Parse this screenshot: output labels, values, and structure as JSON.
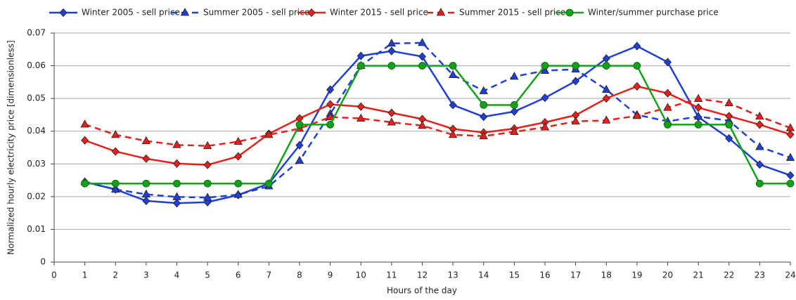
{
  "chart_data": {
    "type": "line",
    "x_label": "Hours of the day",
    "y_label": "Normalized hourly electricity price [dimensionless]",
    "x": [
      1,
      2,
      3,
      4,
      5,
      6,
      7,
      8,
      9,
      10,
      11,
      12,
      13,
      14,
      15,
      16,
      17,
      18,
      19,
      20,
      21,
      22,
      23,
      24
    ],
    "xlim": [
      0,
      24
    ],
    "xticks": [
      0,
      1,
      2,
      3,
      4,
      5,
      6,
      7,
      8,
      9,
      10,
      11,
      12,
      13,
      14,
      15,
      16,
      17,
      18,
      19,
      20,
      21,
      22,
      23,
      24
    ],
    "ylim": [
      0,
      0.07
    ],
    "yticks": [
      0,
      0.01,
      0.02,
      0.03,
      0.04,
      0.05,
      0.06,
      0.07
    ],
    "grid": true,
    "legend": "top",
    "series": [
      {
        "name": "Winter 2005 - sell price",
        "color": "#1f3fd6",
        "marker": "diamond",
        "dashed": false,
        "values": [
          0.0245,
          0.0222,
          0.0187,
          0.018,
          0.0183,
          0.0205,
          0.024,
          0.0357,
          0.0527,
          0.063,
          0.0645,
          0.0628,
          0.048,
          0.0444,
          0.046,
          0.0502,
          0.0553,
          0.0622,
          0.066,
          0.0611,
          0.0443,
          0.0378,
          0.0298,
          0.0265
        ]
      },
      {
        "name": "Summer 2005 - sell price",
        "color": "#1f3fd6",
        "marker": "triangle",
        "dashed": true,
        "values": [
          0.0245,
          0.0222,
          0.0207,
          0.0199,
          0.0197,
          0.0206,
          0.0232,
          0.031,
          0.0453,
          0.06,
          0.0668,
          0.067,
          0.0572,
          0.0523,
          0.0567,
          0.0585,
          0.0589,
          0.0527,
          0.045,
          0.043,
          0.0445,
          0.0432,
          0.0352,
          0.0319
        ]
      },
      {
        "name": "Winter 2015 - sell price",
        "color": "#e8201c",
        "marker": "diamond",
        "dashed": false,
        "values": [
          0.0372,
          0.0338,
          0.0316,
          0.0301,
          0.0297,
          0.0323,
          0.0392,
          0.0439,
          0.0482,
          0.0475,
          0.0456,
          0.0437,
          0.0407,
          0.0396,
          0.0408,
          0.0427,
          0.0449,
          0.05,
          0.0537,
          0.0516,
          0.0472,
          0.0446,
          0.042,
          0.039
        ]
      },
      {
        "name": "Summer 2015 - sell price",
        "color": "#e8201c",
        "marker": "triangle",
        "dashed": true,
        "values": [
          0.0421,
          0.0389,
          0.037,
          0.0358,
          0.0355,
          0.0368,
          0.0389,
          0.0408,
          0.0443,
          0.0439,
          0.0427,
          0.0417,
          0.0389,
          0.0385,
          0.0398,
          0.0412,
          0.043,
          0.0433,
          0.0447,
          0.0472,
          0.0499,
          0.0486,
          0.0445,
          0.041
        ]
      },
      {
        "name": "Winter/summer purchase price",
        "color": "#14a01a",
        "marker": "circle",
        "dashed": false,
        "values": [
          0.024,
          0.024,
          0.024,
          0.024,
          0.024,
          0.024,
          0.024,
          0.042,
          0.042,
          0.06,
          0.06,
          0.06,
          0.06,
          0.048,
          0.048,
          0.06,
          0.06,
          0.06,
          0.06,
          0.042,
          0.042,
          0.042,
          0.024,
          0.024
        ]
      }
    ]
  }
}
